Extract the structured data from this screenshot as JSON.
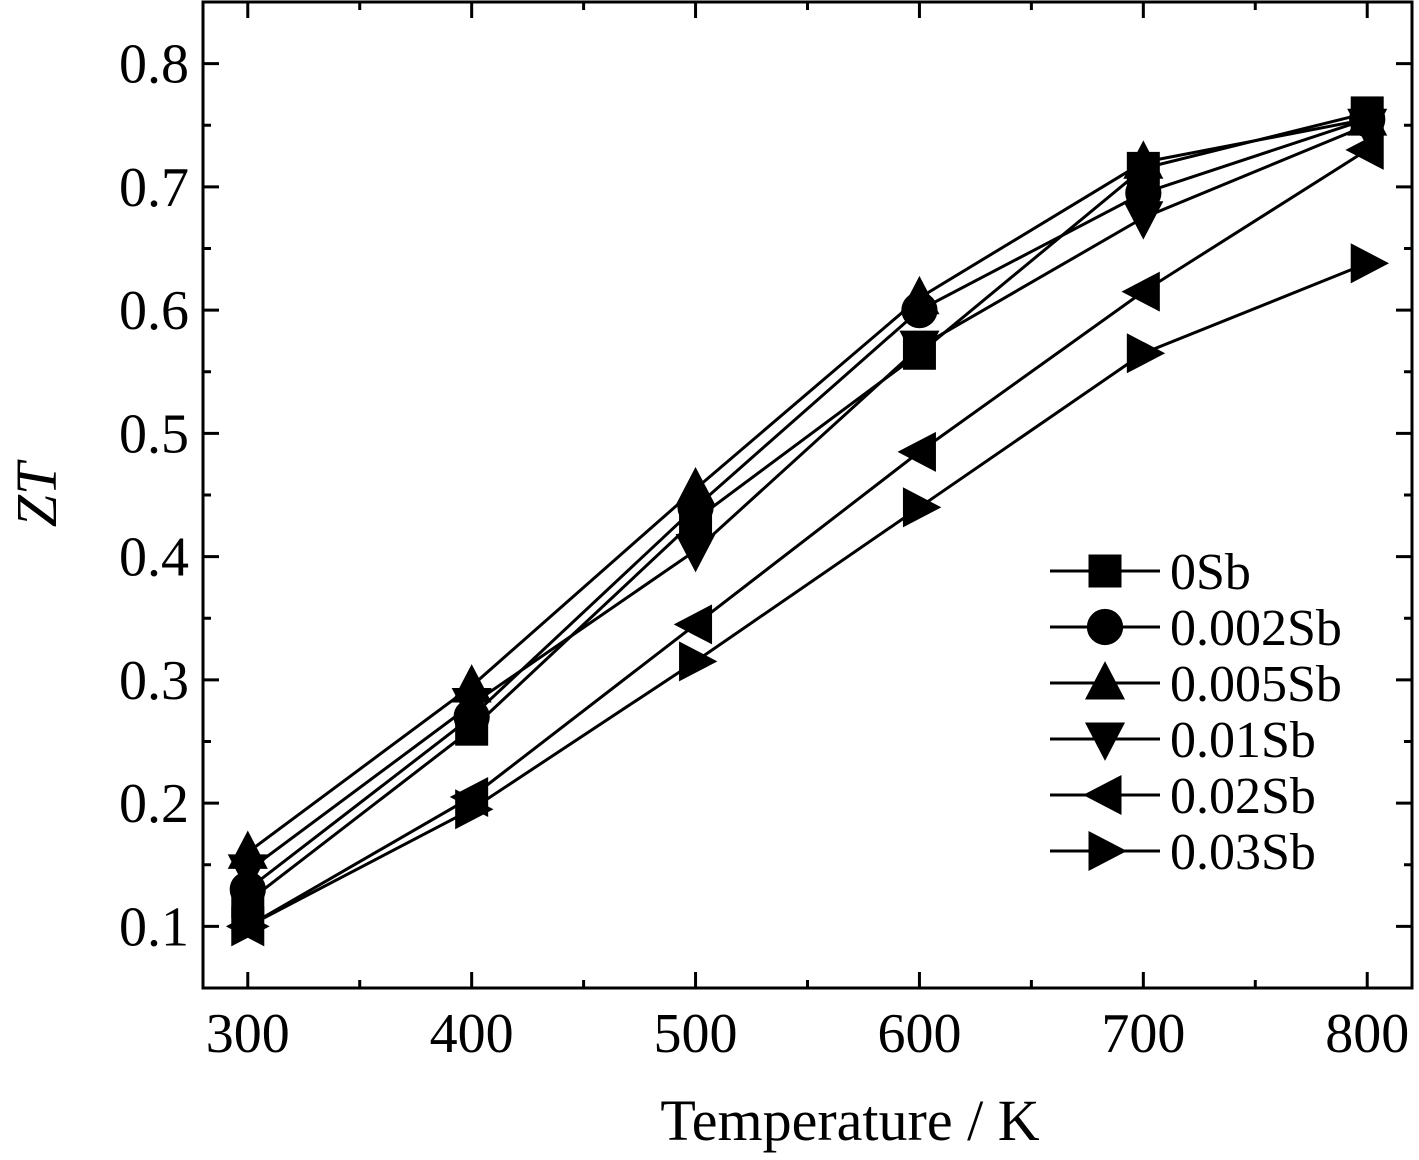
{
  "chart_data": {
    "type": "line",
    "xlabel": "Temperature / K",
    "ylabel": "ZT",
    "xlim": [
      280,
      820
    ],
    "ylim": [
      0.05,
      0.85
    ],
    "x_ticks": [
      300,
      400,
      500,
      600,
      700,
      800
    ],
    "y_ticks": [
      0.1,
      0.2,
      0.3,
      0.4,
      0.5,
      0.6,
      0.7,
      0.8
    ],
    "x_tick_labels": [
      "300",
      "400",
      "500",
      "600",
      "700",
      "800"
    ],
    "y_tick_labels": [
      "0.1",
      "0.2",
      "0.3",
      "0.4",
      "0.5",
      "0.6",
      "0.7",
      "0.8"
    ],
    "grid": false,
    "legend_position": "right-center",
    "x": [
      300,
      400,
      500,
      600,
      700,
      800
    ],
    "series": [
      {
        "name": "0Sb",
        "marker": "square",
        "values": [
          0.12,
          0.26,
          0.43,
          0.565,
          0.715,
          0.76
        ]
      },
      {
        "name": "0.002Sb",
        "marker": "circle",
        "values": [
          0.13,
          0.27,
          0.44,
          0.6,
          0.695,
          0.755
        ]
      },
      {
        "name": "0.005Sb",
        "marker": "triangle-up",
        "values": [
          0.16,
          0.295,
          0.455,
          0.61,
          0.72,
          0.755
        ]
      },
      {
        "name": "0.01Sb",
        "marker": "triangle-down",
        "values": [
          0.145,
          0.28,
          0.405,
          0.57,
          0.675,
          0.75
        ]
      },
      {
        "name": "0.02Sb",
        "marker": "triangle-left",
        "values": [
          0.1,
          0.205,
          0.345,
          0.485,
          0.615,
          0.73
        ]
      },
      {
        "name": "0.03Sb",
        "marker": "triangle-right",
        "values": [
          0.1,
          0.195,
          0.315,
          0.44,
          0.565,
          0.638
        ]
      }
    ]
  }
}
